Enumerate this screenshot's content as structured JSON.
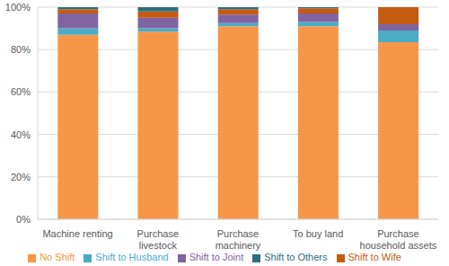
{
  "chart_data": {
    "type": "bar",
    "stacked": true,
    "grid": true,
    "legend": "bottom",
    "categories": [
      "Machine renting",
      "Purchase livestock",
      "Purchase machinery",
      "To buy land",
      "Purchase household assets"
    ],
    "series": [
      {
        "name": "No Shift",
        "color": "#f79646",
        "values": [
          87,
          88.5,
          91,
          91,
          83.5
        ]
      },
      {
        "name": "Shift to Husband",
        "color": "#4bacc6",
        "values": [
          3,
          1.5,
          1.5,
          2,
          5.5
        ]
      },
      {
        "name": "Shift to Joint",
        "color": "#8064a2",
        "values": [
          7,
          5,
          4,
          4,
          3
        ]
      },
      {
        "name": "Shift to Wife",
        "color": "#c55a11",
        "values": [
          2,
          3,
          2.5,
          2.5,
          8
        ]
      },
      {
        "name": "Shift to Others",
        "color": "#2e6e80",
        "values": [
          1,
          2,
          1,
          0.5,
          0
        ]
      }
    ],
    "ylim": [
      0,
      100
    ],
    "yticks": [
      {
        "value": 0,
        "label": "0%"
      },
      {
        "value": 20,
        "label": "20%"
      },
      {
        "value": 40,
        "label": "40%"
      },
      {
        "value": 60,
        "label": "60%"
      },
      {
        "value": 80,
        "label": "80%"
      },
      {
        "value": 100,
        "label": "100%"
      }
    ]
  }
}
